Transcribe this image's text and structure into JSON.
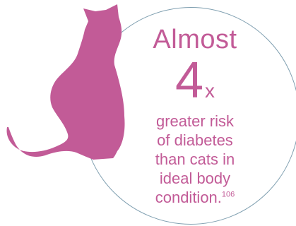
{
  "colors": {
    "accent": "#c25b97",
    "circle_border": "#7f9fb0",
    "background": "#ffffff"
  },
  "illustration": {
    "icon": "cat-silhouette-icon"
  },
  "stat": {
    "lead": "Almost",
    "number": "4",
    "multiplier": "x",
    "lines": [
      "greater risk",
      "of diabetes",
      "than cats in",
      "ideal body",
      "condition."
    ],
    "reference": "106"
  }
}
